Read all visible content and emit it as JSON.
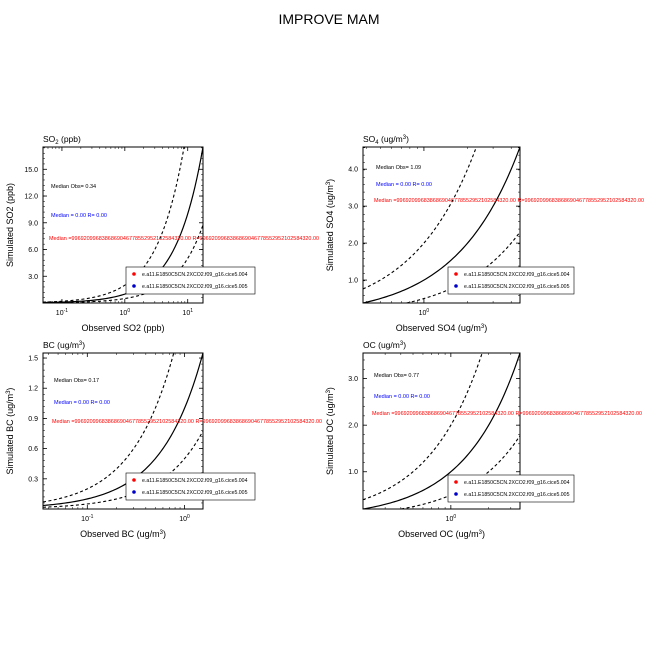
{
  "page": {
    "title": "IMPROVE MAM"
  },
  "colors": {
    "median_sim": "#0000ff",
    "median_fill": "#ff0000",
    "series1": "#ff0000",
    "series2": "#0000cc"
  },
  "legend_entries": [
    "e.a11.E1850C5CN.2XCO2.f09_g16.cice5.004",
    "e.a11.E1850C5CN.2XCO2.f09_g16.cice5.005"
  ],
  "chart_data": [
    {
      "type": "scatter",
      "panel_title_main": "SO",
      "panel_title_sub": "2",
      "panel_title_rest": " (ppb)",
      "xlabel": "Observed SO2 (ppb)",
      "ylabel": "Simulated SO2 (ppb)",
      "x_scale": "log",
      "y_scale": "linear",
      "xlim": [
        0.05,
        17.5
      ],
      "ylim": [
        0,
        17.5
      ],
      "x_ticks": [
        {
          "v": 0.1,
          "b": "10",
          "e": "-1"
        },
        {
          "v": 1,
          "b": "10",
          "e": "0"
        },
        {
          "v": 10,
          "b": "10",
          "e": "1"
        }
      ],
      "y_ticks": [
        {
          "v": 3,
          "label": "3.0"
        },
        {
          "v": 6,
          "label": "6.0"
        },
        {
          "v": 9,
          "label": "9.0"
        },
        {
          "v": 12,
          "label": "12.0"
        },
        {
          "v": 15,
          "label": "15.0"
        }
      ],
      "median_obs": "Median Obs= 0.34",
      "median_sim": "Median = 0.00 R= 0.00",
      "median_fill": "Median =9969209968386869046778552952102584320.00 R=9969209968386869046778552952102584320.00",
      "points": []
    },
    {
      "type": "scatter",
      "panel_title_main": "SO",
      "panel_title_sub": "4",
      "panel_title_rest": " (ug/m",
      "panel_title_sup": "3",
      "panel_title_end": ")",
      "xlabel": "Observed SO4 (ug/m",
      "xlabel_sup": "3",
      "xlabel_end": ")",
      "ylabel": "Simulated SO4 (ug/m",
      "ylabel_sup": "3",
      "ylabel_end": ")",
      "x_scale": "log",
      "y_scale": "linear",
      "xlim": [
        0.38,
        4.6
      ],
      "ylim": [
        0.38,
        4.6
      ],
      "x_ticks": [
        {
          "v": 1,
          "b": "10",
          "e": "0"
        }
      ],
      "y_ticks": [
        {
          "v": 1,
          "label": "1.0"
        },
        {
          "v": 2,
          "label": "2.0"
        },
        {
          "v": 3,
          "label": "3.0"
        },
        {
          "v": 4,
          "label": "4.0"
        }
      ],
      "median_obs": "Median Obs= 1.09",
      "median_sim": "Median = 0.00 R= 0.00",
      "median_fill": "Median =9969209968386869046778552952102584320.00 R=9969209968386869046778552952102584320.00",
      "points": []
    },
    {
      "type": "scatter",
      "panel_title_main": "BC (ug/m",
      "panel_title_sup": "3",
      "panel_title_end": ")",
      "xlabel": "Observed BC (ug/m",
      "xlabel_sup": "3",
      "xlabel_end": ")",
      "ylabel": "Simulated BC (ug/m",
      "ylabel_sup": "3",
      "ylabel_end": ")",
      "x_scale": "log",
      "y_scale": "linear",
      "xlim": [
        0.035,
        1.55
      ],
      "ylim": [
        0,
        1.55
      ],
      "x_ticks": [
        {
          "v": 0.1,
          "b": "10",
          "e": "-1"
        },
        {
          "v": 1,
          "b": "10",
          "e": "0"
        }
      ],
      "y_ticks": [
        {
          "v": 0.3,
          "label": "0.3"
        },
        {
          "v": 0.6,
          "label": "0.6"
        },
        {
          "v": 0.9,
          "label": "0.9"
        },
        {
          "v": 1.2,
          "label": "1.2"
        },
        {
          "v": 1.5,
          "label": "1.5"
        }
      ],
      "median_obs": "Median Obs= 0.17",
      "median_sim": "Median = 0.00 R= 0.00",
      "median_fill": "Median =9969209968386869046778552952102584320.00 R=9969209968386869046778552952102584320.00",
      "points": []
    },
    {
      "type": "scatter",
      "panel_title_main": "OC (ug/m",
      "panel_title_sup": "3",
      "panel_title_end": ")",
      "xlabel": "Observed OC (ug/m",
      "xlabel_sup": "3",
      "xlabel_end": ")",
      "ylabel": "Simulated OC (ug/m",
      "ylabel_sup": "3",
      "ylabel_end": ")",
      "x_scale": "log",
      "y_scale": "linear",
      "xlim": [
        0.2,
        3.55
      ],
      "ylim": [
        0.2,
        3.55
      ],
      "x_ticks": [
        {
          "v": 1,
          "b": "10",
          "e": "0"
        }
      ],
      "y_ticks": [
        {
          "v": 1,
          "label": "1.0"
        },
        {
          "v": 2,
          "label": "2.0"
        },
        {
          "v": 3,
          "label": "3.0"
        }
      ],
      "median_obs": "Median Obs= 0.77",
      "median_sim": "Median = 0.00 R= 0.00",
      "median_fill": "Median =9969209968386869046778552952102584320.00 R=9969209968386869046778552952102584320.00",
      "points": []
    }
  ]
}
